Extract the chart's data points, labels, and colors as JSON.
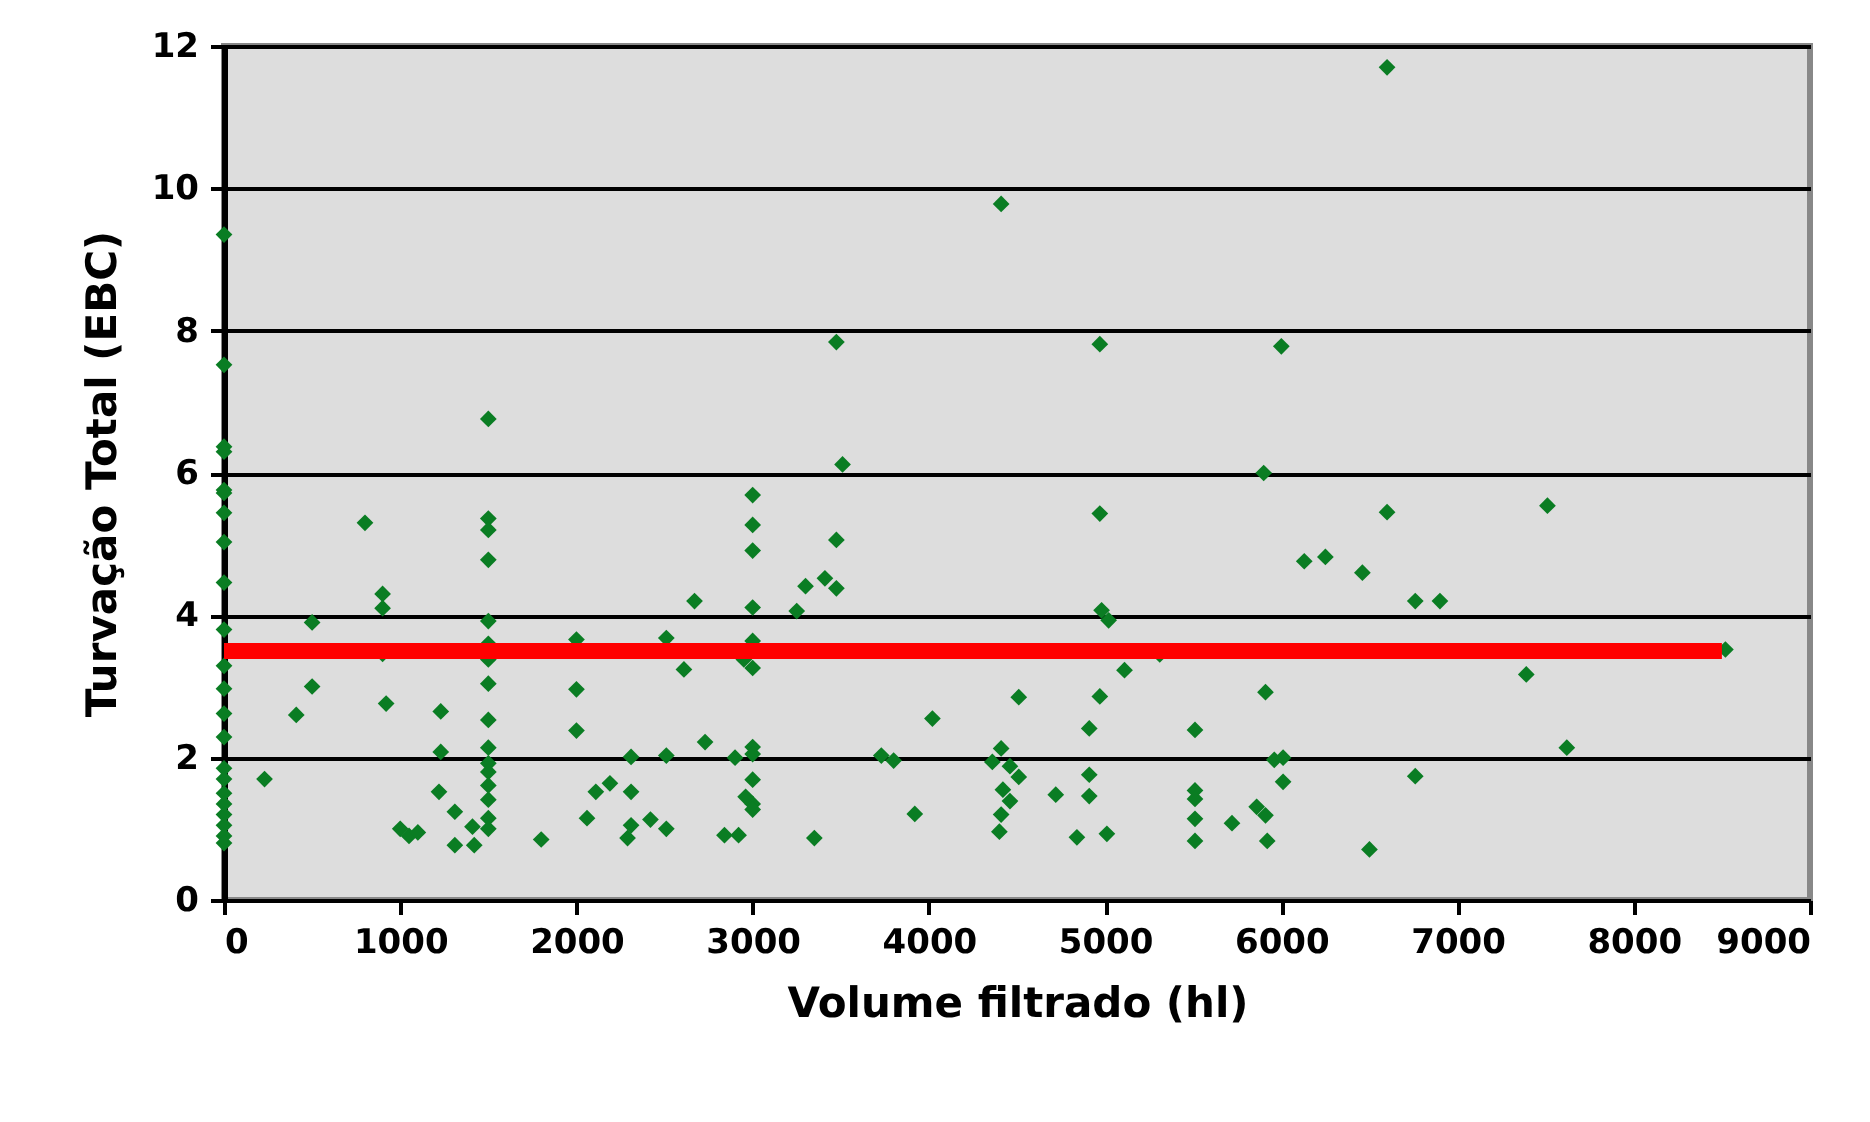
{
  "chart_data": {
    "type": "scatter",
    "xlabel": "Volume filtrado (hl)",
    "ylabel": "Turvação Total (EBC)",
    "xlim": [
      0,
      9000
    ],
    "ylim": [
      0,
      12
    ],
    "xticks": [
      0,
      1000,
      2000,
      3000,
      4000,
      5000,
      6000,
      7000,
      8000,
      9000
    ],
    "yticks": [
      0,
      2,
      4,
      6,
      8,
      10,
      12
    ],
    "grid": "y",
    "series": [
      {
        "marker": "diamond",
        "color": "#0a7d23",
        "x": [
          0,
          0,
          0,
          0,
          0,
          0,
          0,
          0,
          0,
          0,
          0,
          0,
          0,
          0,
          0,
          0,
          0,
          0,
          0,
          0,
          0,
          0,
          230,
          410,
          500,
          500,
          800,
          900,
          900,
          900,
          920,
          1000,
          1050,
          1100,
          1230,
          1230,
          1220,
          1310,
          1410,
          1310,
          1420,
          1800,
          1500,
          1500,
          1500,
          1500,
          1500,
          1500,
          1500,
          1500,
          1500,
          1500,
          1500,
          1500,
          1500,
          1500,
          1500,
          1500,
          2000,
          2000,
          2000,
          2060,
          2110,
          2190,
          2310,
          2310,
          2290,
          2310,
          2420,
          2510,
          2510,
          2510,
          2610,
          2670,
          2730,
          2840,
          2920,
          2900,
          3000,
          3000,
          3000,
          3000,
          3000,
          3000,
          3000,
          3000,
          3000,
          3000,
          3000,
          2950,
          2960,
          3250,
          3300,
          3410,
          3475,
          3475,
          3510,
          3475,
          3350,
          3730,
          3800,
          4020,
          3920,
          4410,
          4970,
          6000,
          5900,
          4970,
          6130,
          6250,
          4980,
          5020,
          5310,
          5110,
          4510,
          4970,
          4910,
          5510,
          5910,
          4410,
          4360,
          4460,
          4510,
          4420,
          4460,
          4410,
          4400,
          4720,
          4910,
          4910,
          4840,
          5010,
          5510,
          5510,
          5510,
          5510,
          5720,
          5860,
          5910,
          5920,
          5960,
          6010,
          6010,
          6600,
          6600,
          7510,
          6460,
          6760,
          6900,
          8520,
          7390,
          7620,
          6760,
          6500
        ],
        "values": [
          9.35,
          7.52,
          6.37,
          6.3,
          5.76,
          5.72,
          5.44,
          5.03,
          4.46,
          3.8,
          3.29,
          2.97,
          2.62,
          2.29,
          1.85,
          1.7,
          1.5,
          1.35,
          1.2,
          1.05,
          0.9,
          0.8,
          1.7,
          2.6,
          3.0,
          3.9,
          5.3,
          4.3,
          4.1,
          3.46,
          2.76,
          1.0,
          0.9,
          0.95,
          2.65,
          2.08,
          1.52,
          1.24,
          1.03,
          0.77,
          0.77,
          0.85,
          6.76,
          5.36,
          5.2,
          4.78,
          3.92,
          3.6,
          3.38,
          3.04,
          2.53,
          2.14,
          1.92,
          1.8,
          1.61,
          1.41,
          1.15,
          1.0,
          3.66,
          2.96,
          2.38,
          1.15,
          1.52,
          1.64,
          1.52,
          2.01,
          0.87,
          1.05,
          1.13,
          1.0,
          2.03,
          3.68,
          3.24,
          4.2,
          2.22,
          0.91,
          0.91,
          2.0,
          5.69,
          5.27,
          4.91,
          4.11,
          3.64,
          3.26,
          2.15,
          2.05,
          1.69,
          1.35,
          1.27,
          3.38,
          1.45,
          4.06,
          4.41,
          4.52,
          4.38,
          5.06,
          6.12,
          7.84,
          0.87,
          2.03,
          1.96,
          2.55,
          1.21,
          9.78,
          7.81,
          7.78,
          6.0,
          5.43,
          4.76,
          4.82,
          4.07,
          3.93,
          3.45,
          3.23,
          2.85,
          2.86,
          2.41,
          2.39,
          2.92,
          2.13,
          1.94,
          1.88,
          1.73,
          1.55,
          1.39,
          1.2,
          0.96,
          1.48,
          1.76,
          1.46,
          0.88,
          0.93,
          1.54,
          1.42,
          1.14,
          0.83,
          1.08,
          1.31,
          1.19,
          0.83,
          1.97,
          2.0,
          1.66,
          11.7,
          5.45,
          5.54,
          4.6,
          4.2,
          4.2,
          3.52,
          3.17,
          2.14,
          1.74,
          0.71
        ]
      },
      {
        "type": "line",
        "color": "#ff0000",
        "x": [
          0,
          8500
        ],
        "values": [
          3.5,
          3.5
        ]
      }
    ]
  }
}
